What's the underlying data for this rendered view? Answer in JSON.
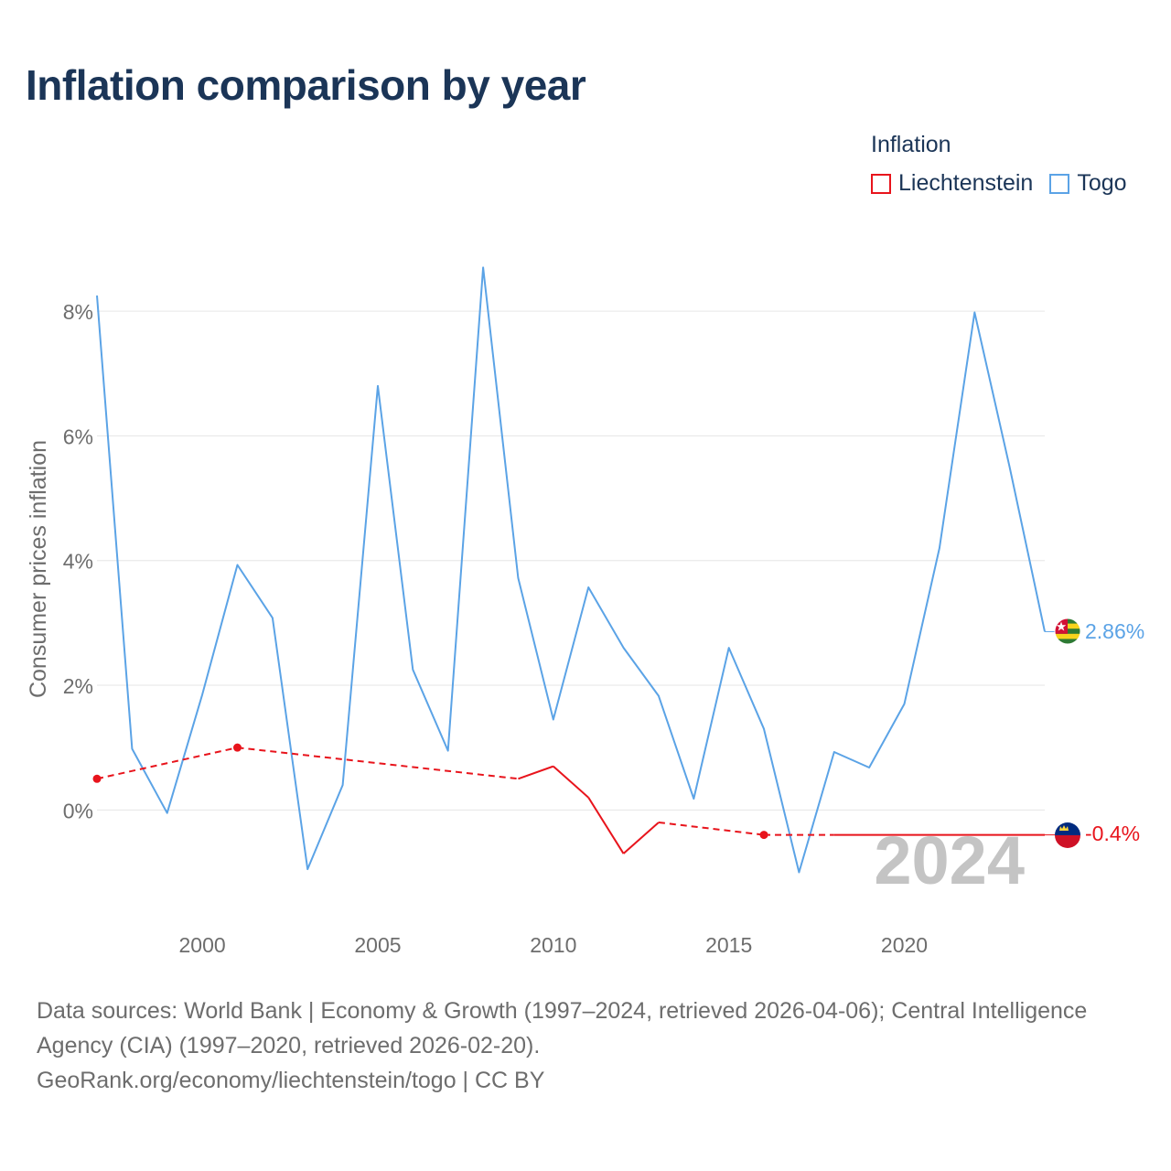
{
  "title": "Inflation comparison by year",
  "legend": {
    "title": "Inflation",
    "items": [
      {
        "label": "Liechtenstein",
        "color": "#e8141c"
      },
      {
        "label": "Togo",
        "color": "#5ba3e6"
      }
    ]
  },
  "footer": {
    "line1": "Data sources: World Bank | Economy & Growth (1997–2024, retrieved 2026-04-06); Central Intelligence Agency (CIA) (1997–2020, retrieved 2026-02-20).",
    "line2": "GeoRank.org/economy/liechtenstein/togo | CC BY"
  },
  "chart_data": {
    "type": "line",
    "title": "Inflation comparison by year",
    "xlabel": "",
    "ylabel": "Consumer prices inflation",
    "xlim": [
      1997,
      2024
    ],
    "ylim": [
      -1.8,
      9.0
    ],
    "x_ticks": [
      2000,
      2005,
      2010,
      2015,
      2020
    ],
    "y_ticks": [
      0,
      2,
      4,
      6,
      8
    ],
    "y_tick_labels": [
      "0%",
      "2%",
      "4%",
      "6%",
      "8%"
    ],
    "grid": true,
    "year_watermark": "2024",
    "series": [
      {
        "name": "Togo",
        "color": "#5ba3e6",
        "end_label": "2.86%",
        "points": [
          [
            1997,
            8.25
          ],
          [
            1998,
            0.98
          ],
          [
            1999,
            -0.05
          ],
          [
            2000,
            1.85
          ],
          [
            2001,
            3.93
          ],
          [
            2002,
            3.08
          ],
          [
            2003,
            -0.95
          ],
          [
            2004,
            0.4
          ],
          [
            2005,
            6.8
          ],
          [
            2006,
            2.25
          ],
          [
            2007,
            0.95
          ],
          [
            2008,
            8.7
          ],
          [
            2009,
            3.72
          ],
          [
            2010,
            1.45
          ],
          [
            2011,
            3.57
          ],
          [
            2012,
            2.6
          ],
          [
            2013,
            1.83
          ],
          [
            2014,
            0.18
          ],
          [
            2015,
            2.6
          ],
          [
            2016,
            1.3
          ],
          [
            2017,
            -1.0
          ],
          [
            2018,
            0.93
          ],
          [
            2019,
            0.68
          ],
          [
            2020,
            1.7
          ],
          [
            2021,
            4.2
          ],
          [
            2022,
            7.98
          ],
          [
            2023,
            5.5
          ],
          [
            2024,
            2.86
          ]
        ]
      },
      {
        "name": "Liechtenstein",
        "color": "#e8141c",
        "end_label": "-0.4%",
        "points": [
          [
            1997,
            0.5
          ],
          [
            2001,
            1.0
          ],
          [
            2009,
            0.5
          ],
          [
            2010,
            0.7
          ],
          [
            2011,
            0.2
          ],
          [
            2012,
            -0.7
          ],
          [
            2013,
            -0.2
          ],
          [
            2016,
            -0.4
          ],
          [
            2024,
            -0.4
          ]
        ],
        "dashed_between": [
          [
            1997,
            2001
          ],
          [
            2001,
            2009
          ],
          [
            2013,
            2016
          ],
          [
            2016,
            2018
          ]
        ],
        "markers": [
          1997,
          2001,
          2016
        ]
      }
    ]
  }
}
